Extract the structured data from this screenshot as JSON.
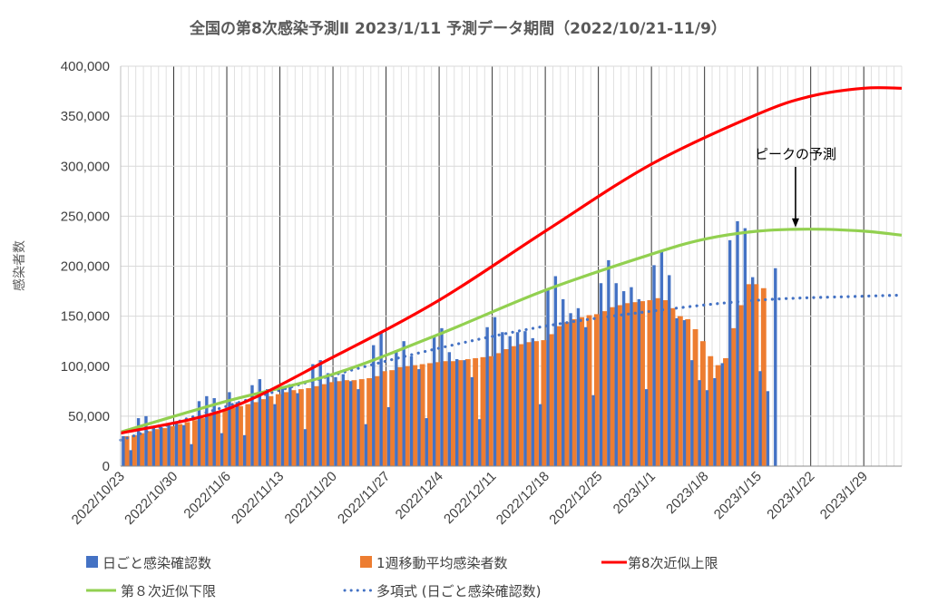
{
  "chart_data": {
    "type": "bar",
    "title": "全国の第8次感染予測Ⅱ  2023/1/11   予測データ期間（2022/10/21-11/9）",
    "ylabel": "感染者数",
    "xlabel": "",
    "ylim": [
      0,
      400000
    ],
    "y_ticks": [
      0,
      50000,
      100000,
      150000,
      200000,
      250000,
      300000,
      350000,
      400000
    ],
    "y_tick_labels": [
      "0",
      "50,000",
      "100,000",
      "150,000",
      "200,000",
      "250,000",
      "300,000",
      "350,000",
      "400,000"
    ],
    "x_start": "2022/10/23",
    "x_end": "2023/2/3",
    "x_tick_labels": [
      "2022/10/23",
      "2022/10/30",
      "2022/11/6",
      "2022/11/13",
      "2022/11/20",
      "2022/11/27",
      "2022/12/4",
      "2022/12/11",
      "2022/12/18",
      "2022/12/25",
      "2023/1/1",
      "2023/1/8",
      "2023/1/15",
      "2023/1/22",
      "2023/1/29"
    ],
    "grid": true,
    "legend_position": "bottom",
    "annotation": {
      "text": "ピークの予測",
      "date": "2023/1/20",
      "value": 236000
    },
    "series": [
      {
        "name": "日ごと感染確認数",
        "kind": "bar",
        "color": "#4472C4",
        "start_date": "2022/10/23",
        "values": [
          30000,
          16000,
          48000,
          50000,
          38000,
          39000,
          41000,
          45000,
          41000,
          22000,
          65000,
          70000,
          68000,
          33000,
          74000,
          64000,
          31000,
          81000,
          87000,
          77000,
          62000,
          79000,
          82000,
          73000,
          37000,
          102000,
          106000,
          93000,
          89000,
          92000,
          85000,
          77000,
          42000,
          121000,
          133000,
          59000,
          116000,
          125000,
          110000,
          97000,
          48000,
          130000,
          138000,
          114000,
          107000,
          106000,
          89000,
          47000,
          139000,
          149000,
          134000,
          130000,
          134000,
          135000,
          128000,
          62000,
          176000,
          190000,
          167000,
          153000,
          158000,
          139000,
          71000,
          183000,
          206000,
          183000,
          175000,
          179000,
          167000,
          77000,
          201000,
          216000,
          191000,
          148000,
          146000,
          106000,
          86000,
          76000,
          88000,
          103000,
          226000,
          245000,
          238000,
          189000,
          95000,
          75000,
          198000
        ]
      },
      {
        "name": "1週移動平均感染者数",
        "kind": "bar",
        "color": "#ED7D31",
        "start_date": "2022/10/23",
        "values": [
          30000,
          31000,
          33000,
          35000,
          37000,
          38000,
          40000,
          42000,
          44000,
          46000,
          48000,
          51000,
          54000,
          56000,
          58000,
          60000,
          62000,
          64000,
          67000,
          70000,
          72000,
          74000,
          76000,
          77000,
          78000,
          80000,
          82000,
          84000,
          85000,
          86000,
          86000,
          87000,
          88000,
          90000,
          95000,
          96000,
          99000,
          100000,
          101000,
          102000,
          103000,
          104000,
          105000,
          105000,
          106000,
          107000,
          108000,
          109000,
          110000,
          113000,
          117000,
          120000,
          122000,
          124000,
          125000,
          126000,
          132000,
          140000,
          144000,
          147000,
          149000,
          151000,
          152000,
          155000,
          159000,
          161000,
          163000,
          164000,
          165000,
          166000,
          168000,
          166000,
          158000,
          150000,
          147000,
          137000,
          125000,
          110000,
          101000,
          108000,
          138000,
          161000,
          182000,
          182000,
          178000
        ]
      },
      {
        "name": "第8次近似上限",
        "kind": "line",
        "color": "#FF0000",
        "points": [
          [
            "2022/10/23",
            33000
          ],
          [
            "2022/11/6",
            57000
          ],
          [
            "2022/11/20",
            109000
          ],
          [
            "2022/12/4",
            166000
          ],
          [
            "2022/12/18",
            235000
          ],
          [
            "2023/1/1",
            302000
          ],
          [
            "2023/1/15",
            352000
          ],
          [
            "2023/1/22",
            370000
          ],
          [
            "2023/1/29",
            378000
          ],
          [
            "2023/2/3",
            378000
          ]
        ]
      },
      {
        "name": "第８次近似下限",
        "kind": "line",
        "color": "#92D050",
        "points": [
          [
            "2022/10/23",
            34000
          ],
          [
            "2022/11/6",
            65000
          ],
          [
            "2022/11/20",
            92000
          ],
          [
            "2022/12/4",
            132000
          ],
          [
            "2022/12/18",
            176000
          ],
          [
            "2023/1/1",
            212000
          ],
          [
            "2023/1/8",
            227000
          ],
          [
            "2023/1/15",
            235000
          ],
          [
            "2023/1/22",
            237000
          ],
          [
            "2023/1/29",
            235000
          ],
          [
            "2023/2/3",
            231000
          ]
        ]
      },
      {
        "name": "多項式 (日ごと感染確認数)",
        "kind": "trend",
        "color": "#4472C4",
        "points": [
          [
            "2022/10/23",
            26000
          ],
          [
            "2022/11/6",
            60000
          ],
          [
            "2022/11/20",
            91000
          ],
          [
            "2022/12/4",
            118000
          ],
          [
            "2022/12/18",
            140000
          ],
          [
            "2023/1/1",
            155000
          ],
          [
            "2023/1/15",
            166000
          ],
          [
            "2023/1/29",
            170000
          ],
          [
            "2023/2/3",
            171000
          ]
        ]
      }
    ]
  }
}
